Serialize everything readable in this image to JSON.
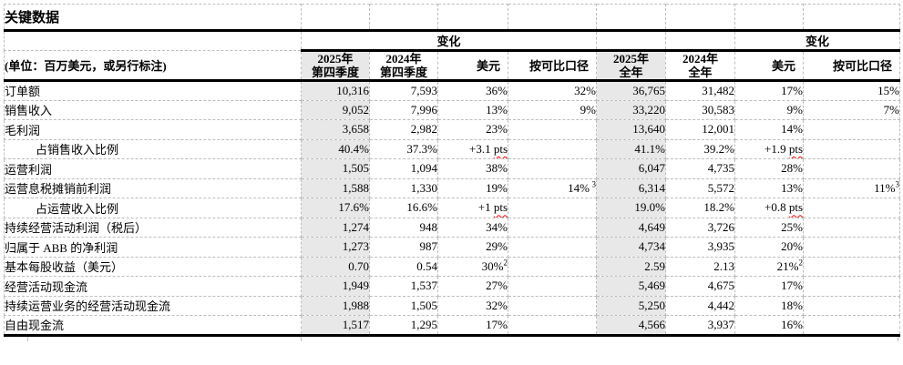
{
  "title": "关键数据",
  "header": {
    "unit_label": "(单位：百万美元，或另行标注)",
    "change_label_q4": "变化",
    "change_label_fy": "变化",
    "columns": [
      {
        "id": "q4-2025",
        "line1": "2025年",
        "line2": "第四季度",
        "shaded": true
      },
      {
        "id": "q4-2024",
        "line1": "2024年",
        "line2": "第四季度"
      },
      {
        "id": "q4-change-usd",
        "line1": "美元",
        "align": "right"
      },
      {
        "id": "q4-change-comparable",
        "line1": "按可比口径",
        "align": "right"
      },
      {
        "id": "fy-2025",
        "line1": "2025年",
        "line2": "全年",
        "shaded": true
      },
      {
        "id": "fy-2024",
        "line1": "2024年",
        "line2": "全年"
      },
      {
        "id": "fy-change-usd",
        "line1": "美元",
        "align": "right"
      },
      {
        "id": "fy-change-comparable",
        "line1": "按可比口径",
        "align": "right"
      }
    ]
  },
  "rows": [
    {
      "label": "订单额",
      "values": [
        "10,316",
        "7,593",
        "36%",
        "32%",
        "36,765",
        "31,482",
        "17%",
        "15%"
      ]
    },
    {
      "label": "销售收入",
      "values": [
        "9,052",
        "7,996",
        "13%",
        "9%",
        "33,220",
        "30,583",
        "9%",
        "7%"
      ]
    },
    {
      "label": "毛利润",
      "values": [
        "3,658",
        "2,982",
        "23%",
        "",
        "13,640",
        "12,001",
        "14%",
        ""
      ]
    },
    {
      "label": "占销售收入比例",
      "indent": true,
      "values": [
        "40.4%",
        "37.3%",
        "+3.1 pts",
        "",
        "41.1%",
        "39.2%",
        "+1.9 pts",
        ""
      ]
    },
    {
      "label": "运营利润",
      "values": [
        "1,505",
        "1,094",
        "38%",
        "",
        "6,047",
        "4,735",
        "28%",
        ""
      ]
    },
    {
      "label": "运营息税摊销前利润",
      "values": [
        "1,588",
        "1,330",
        "19%",
        "14% ^3",
        "6,314",
        "5,572",
        "13%",
        "11%^3"
      ]
    },
    {
      "label": "占运营收入比例",
      "indent": true,
      "values": [
        "17.6%",
        "16.6%",
        "+1 pts",
        "",
        "19.0%",
        "18.2%",
        "+0.8 pts",
        ""
      ]
    },
    {
      "label": "持续经营活动利润（税后）",
      "values": [
        "1,274",
        "948",
        "34%",
        "",
        "4,649",
        "3,726",
        "25%",
        ""
      ]
    },
    {
      "label": "归属于 ABB 的净利润",
      "values": [
        "1,273",
        "987",
        "29%",
        "",
        "4,734",
        "3,935",
        "20%",
        ""
      ]
    },
    {
      "label": "基本每股收益（美元）",
      "values": [
        "0.70",
        "0.54",
        "30%^2",
        "",
        "2.59",
        "2.13",
        "21%^2",
        ""
      ]
    },
    {
      "label": "经营活动现金流",
      "values": [
        "1,949",
        "1,537",
        "27%",
        "",
        "5,469",
        "4,675",
        "17%",
        ""
      ]
    },
    {
      "label": "持续运营业务的经营活动现金流",
      "values": [
        "1,988",
        "1,505",
        "32%",
        "",
        "5,250",
        "4,442",
        "18%",
        ""
      ]
    },
    {
      "label": "自由现金流",
      "values": [
        "1,517",
        "1,295",
        "17%",
        "",
        "4,566",
        "3,937",
        "16%",
        ""
      ]
    }
  ],
  "style": {
    "shade_color": "#e8e8e8",
    "grid_color": "#bdbdbd",
    "rule_color": "#000000",
    "squiggle_color": "#ff0000"
  }
}
